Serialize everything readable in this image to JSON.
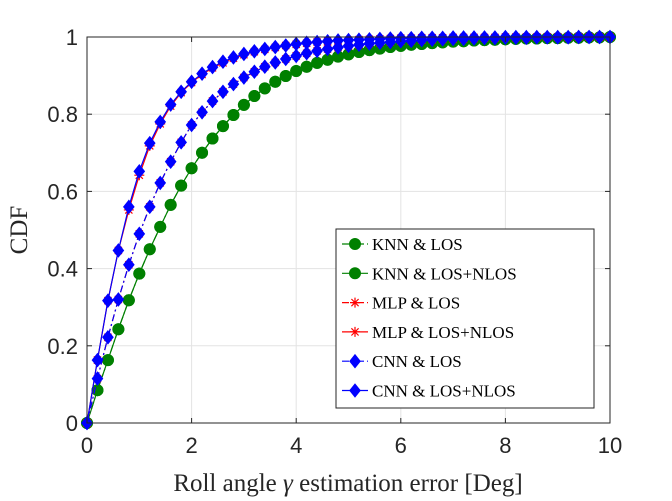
{
  "chart_data": {
    "type": "line",
    "title": "",
    "xlabel": "Roll angle γ estimation error [Deg]",
    "xlabel_prefix": "Roll angle ",
    "xlabel_symbol": "γ",
    "xlabel_suffix": " estimation error [Deg]",
    "ylabel": "CDF",
    "xlim": [
      0,
      10
    ],
    "ylim": [
      0,
      1
    ],
    "xticks": [
      0,
      2,
      4,
      6,
      8,
      10
    ],
    "yticks": [
      0,
      0.2,
      0.4,
      0.6,
      0.8,
      1
    ],
    "xtick_labels": [
      "0",
      "2",
      "4",
      "6",
      "8",
      "10"
    ],
    "ytick_labels": [
      "0",
      "0.2",
      "0.4",
      "0.6",
      "0.8",
      "1"
    ],
    "grid": true,
    "legend_position": "bottom-right",
    "x": [
      0,
      0.2,
      0.4,
      0.6,
      0.8,
      1.0,
      1.2,
      1.4,
      1.6,
      1.8,
      2.0,
      2.2,
      2.4,
      2.6,
      2.8,
      3.0,
      3.2,
      3.4,
      3.6,
      3.8,
      4.0,
      4.2,
      4.4,
      4.6,
      4.8,
      5.0,
      5.2,
      5.4,
      5.6,
      5.8,
      6.0,
      6.2,
      6.4,
      6.6,
      6.8,
      7.0,
      7.2,
      7.4,
      7.6,
      7.8,
      8.0,
      8.2,
      8.4,
      8.6,
      8.8,
      9.0,
      9.2,
      9.4,
      9.6,
      9.8,
      10.0
    ],
    "series": [
      {
        "name": "KNN & LOS",
        "color": "#008000",
        "marker": "circle",
        "line_style": "dashdot",
        "values": [
          0,
          0.085,
          0.163,
          0.243,
          0.318,
          0.387,
          0.45,
          0.508,
          0.565,
          0.615,
          0.66,
          0.7,
          0.737,
          0.769,
          0.798,
          0.824,
          0.847,
          0.867,
          0.884,
          0.899,
          0.912,
          0.923,
          0.933,
          0.941,
          0.949,
          0.955,
          0.961,
          0.966,
          0.97,
          0.974,
          0.977,
          0.98,
          0.982,
          0.984,
          0.986,
          0.988,
          0.989,
          0.991,
          0.992,
          0.993,
          0.994,
          0.995,
          0.996,
          0.996,
          0.997,
          0.997,
          0.998,
          0.998,
          0.999,
          0.999,
          1.0
        ]
      },
      {
        "name": "KNN & LOS+NLOS",
        "color": "#008000",
        "marker": "circle",
        "line_style": "solid",
        "values": [
          0,
          0.085,
          0.163,
          0.243,
          0.318,
          0.387,
          0.45,
          0.508,
          0.565,
          0.615,
          0.66,
          0.7,
          0.737,
          0.769,
          0.798,
          0.824,
          0.847,
          0.867,
          0.884,
          0.899,
          0.912,
          0.923,
          0.933,
          0.941,
          0.949,
          0.955,
          0.961,
          0.966,
          0.97,
          0.974,
          0.977,
          0.98,
          0.982,
          0.984,
          0.986,
          0.988,
          0.989,
          0.991,
          0.992,
          0.993,
          0.994,
          0.995,
          0.996,
          0.996,
          0.997,
          0.997,
          0.998,
          0.998,
          0.999,
          0.999,
          1.0
        ]
      },
      {
        "name": "MLP & LOS",
        "color": "#ff0000",
        "marker": "asterisk",
        "line_style": "dashdot",
        "values": [
          0,
          0.115,
          0.222,
          0.32,
          0.41,
          0.49,
          0.56,
          0.622,
          0.677,
          0.727,
          0.772,
          0.805,
          0.834,
          0.858,
          0.878,
          0.895,
          0.91,
          0.923,
          0.934,
          0.943,
          0.951,
          0.958,
          0.964,
          0.969,
          0.973,
          0.977,
          0.98,
          0.983,
          0.985,
          0.987,
          0.989,
          0.99,
          0.992,
          0.993,
          0.994,
          0.995,
          0.995,
          0.996,
          0.997,
          0.997,
          0.998,
          0.998,
          0.998,
          0.999,
          0.999,
          0.999,
          0.999,
          1.0,
          1.0,
          1.0,
          1.0
        ]
      },
      {
        "name": "MLP & LOS+NLOS",
        "color": "#ff0000",
        "marker": "asterisk",
        "line_style": "solid",
        "values": [
          0,
          0.163,
          0.317,
          0.447,
          0.552,
          0.642,
          0.718,
          0.775,
          0.821,
          0.856,
          0.882,
          0.903,
          0.92,
          0.933,
          0.945,
          0.954,
          0.962,
          0.968,
          0.973,
          0.978,
          0.981,
          0.984,
          0.987,
          0.989,
          0.991,
          0.992,
          0.993,
          0.994,
          0.995,
          0.996,
          0.997,
          0.997,
          0.998,
          0.998,
          0.998,
          0.999,
          0.999,
          0.999,
          0.999,
          0.999,
          1.0,
          1.0,
          1.0,
          1.0,
          1.0,
          1.0,
          1.0,
          1.0,
          1.0,
          1.0,
          1.0
        ]
      },
      {
        "name": "CNN & LOS",
        "color": "#0000ff",
        "marker": "diamond",
        "line_style": "dashdot",
        "values": [
          0,
          0.115,
          0.222,
          0.32,
          0.41,
          0.49,
          0.56,
          0.622,
          0.677,
          0.727,
          0.772,
          0.805,
          0.834,
          0.858,
          0.878,
          0.895,
          0.91,
          0.923,
          0.934,
          0.943,
          0.951,
          0.958,
          0.964,
          0.969,
          0.973,
          0.977,
          0.98,
          0.983,
          0.985,
          0.987,
          0.989,
          0.99,
          0.992,
          0.993,
          0.994,
          0.995,
          0.995,
          0.996,
          0.997,
          0.997,
          0.998,
          0.998,
          0.998,
          0.999,
          0.999,
          0.999,
          0.999,
          1.0,
          1.0,
          1.0,
          1.0
        ]
      },
      {
        "name": "CNN & LOS+NLOS",
        "color": "#0000ff",
        "marker": "diamond",
        "line_style": "solid",
        "values": [
          0,
          0.163,
          0.317,
          0.447,
          0.56,
          0.652,
          0.725,
          0.78,
          0.825,
          0.858,
          0.884,
          0.905,
          0.922,
          0.936,
          0.947,
          0.956,
          0.963,
          0.969,
          0.974,
          0.978,
          0.982,
          0.985,
          0.987,
          0.989,
          0.991,
          0.992,
          0.993,
          0.994,
          0.995,
          0.996,
          0.997,
          0.997,
          0.998,
          0.998,
          0.998,
          0.999,
          0.999,
          0.999,
          0.999,
          0.999,
          1.0,
          1.0,
          1.0,
          1.0,
          1.0,
          1.0,
          1.0,
          1.0,
          1.0,
          1.0,
          1.0
        ]
      }
    ]
  }
}
